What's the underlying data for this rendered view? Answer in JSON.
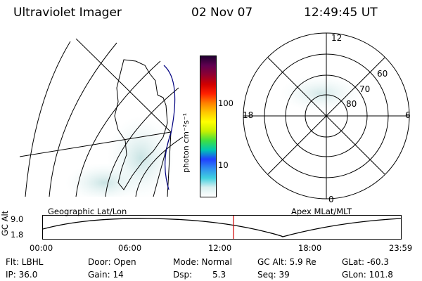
{
  "header": {
    "title": "Ultraviolet Imager",
    "date": "02 Nov 07",
    "time": "12:49:45 UT"
  },
  "colorbar": {
    "unit_label": "photon cm⁻²s⁻¹",
    "tick_100": "100",
    "tick_10": "10",
    "stops": [
      "#ffffff",
      "#d8f0f0",
      "#40d0e0",
      "#3090f0",
      "#2040ff",
      "#00c8b0",
      "#40e040",
      "#c8f000",
      "#ffff00",
      "#ffc800",
      "#ff8000",
      "#ff2000",
      "#d00000",
      "#900030",
      "#600050",
      "#200030"
    ]
  },
  "polar_plot": {
    "mlt_12": "12",
    "mlt_18": "18",
    "mlt_6": "6",
    "mlt_0": "0",
    "lat_60": "60",
    "lat_70": "70",
    "lat_80": "80"
  },
  "orbit_panel": {
    "left_caption": "Geographic Lat/Lon",
    "right_caption": "Apex MLat/MLT",
    "axis_label": "GC Alt",
    "y_top": "9.0",
    "y_bottom": "1.8",
    "x_ticks": [
      "00:00",
      "06:00",
      "12:00",
      "18:00",
      "23:59"
    ]
  },
  "info": {
    "filter": "Flt: LBHL",
    "door": "Door: Open",
    "mode": "Mode: Normal",
    "gc_alt": "GC Alt: 5.9 Re",
    "glat": "GLat: -60.3",
    "ip": "IP: 36.0",
    "gain": "Gain: 14",
    "dsp_label": "Dsp:",
    "dsp_value": "5.3",
    "seq": "Seq: 39",
    "glon": "GLon: 101.8"
  }
}
